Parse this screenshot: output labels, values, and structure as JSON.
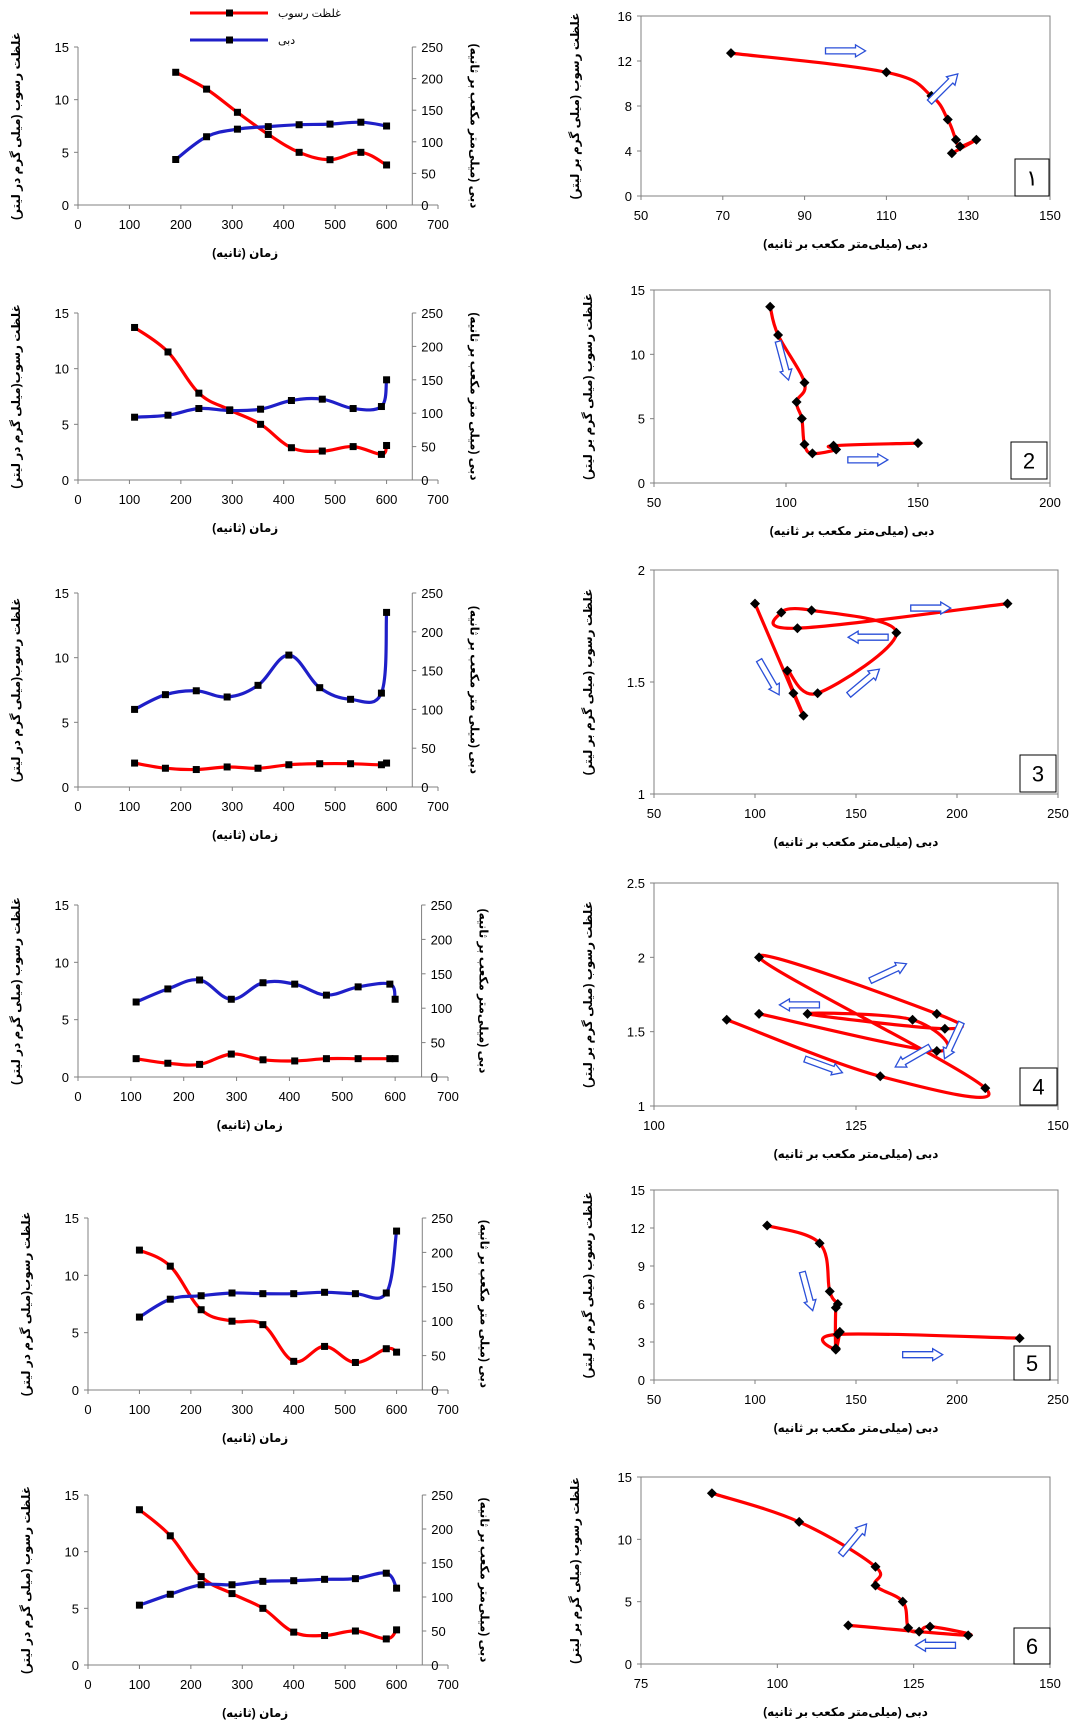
{
  "colors": {
    "sediment": "#ff0000",
    "discharge": "#1f1fc8",
    "marker_loop": "#000000",
    "arrow": "#2a4fd8",
    "axis": "#808080"
  },
  "chart_data": [
    {
      "id": "ts-1",
      "type": "line",
      "panel": "time-series",
      "legend": [
        "غلظت رسوب",
        "دبی"
      ],
      "xlabel": "زمان (ثانیه)",
      "ylabel": "غلظت رسوب (میلی گرم در لیتر)",
      "y2label": "دبی (میلی‌متر مکعب بر ثانیه)",
      "xlim": [
        0,
        700
      ],
      "xticks": [
        0,
        100,
        200,
        300,
        400,
        500,
        600,
        700
      ],
      "ylim": [
        0,
        15
      ],
      "yticks": [
        0,
        5,
        10,
        15
      ],
      "y2lim": [
        0,
        250
      ],
      "y2ticks": [
        0,
        50,
        100,
        150,
        200,
        250
      ],
      "series": [
        {
          "name": "غلظت رسوب",
          "axis": "left",
          "x": [
            190,
            250,
            310,
            370,
            430,
            490,
            550,
            600
          ],
          "y": [
            12.6,
            11.0,
            8.8,
            6.7,
            5.0,
            4.3,
            5.0,
            3.8
          ]
        },
        {
          "name": "دبی",
          "axis": "right",
          "x": [
            190,
            250,
            310,
            370,
            430,
            490,
            550,
            600
          ],
          "y": [
            72,
            108,
            120,
            124,
            127,
            128,
            131,
            125
          ]
        }
      ]
    },
    {
      "id": "hys-1",
      "type": "scatter",
      "panel": "hysteresis",
      "panel_label": "۱",
      "xlabel": "دبی (میلی‌متر مکعب بر ثانیه)",
      "ylabel": "غلظت رسوب (میلی گرم بر لیتر)",
      "xlim": [
        50,
        150
      ],
      "xticks": [
        50,
        70,
        90,
        110,
        130,
        150
      ],
      "ylim": [
        0,
        16
      ],
      "yticks": [
        0,
        4,
        8,
        12,
        16
      ],
      "points": {
        "x": [
          72,
          110,
          121,
          125,
          127,
          128,
          132,
          126
        ],
        "y": [
          12.7,
          11.0,
          8.9,
          6.8,
          5.0,
          4.4,
          5.0,
          3.8
        ]
      },
      "arrows": [
        {
          "x": 100,
          "y": 12.9,
          "dir": 0
        },
        {
          "x": 124,
          "y": 9.6,
          "dir": -45
        }
      ]
    },
    {
      "id": "ts-2",
      "type": "line",
      "panel": "time-series",
      "xlabel": "زمان (ثانیه)",
      "ylabel": "غلظت رسوب(میلی گرم در لیتر)",
      "y2label": "دبی (میلی متر مکعب بر ثانیه)",
      "xlim": [
        0,
        700
      ],
      "xticks": [
        0,
        100,
        200,
        300,
        400,
        500,
        600,
        700
      ],
      "ylim": [
        0,
        15
      ],
      "yticks": [
        0,
        5,
        10,
        15
      ],
      "y2lim": [
        0,
        250
      ],
      "y2ticks": [
        0,
        50,
        100,
        150,
        200,
        250
      ],
      "series": [
        {
          "name": "غلظت رسوب",
          "axis": "left",
          "x": [
            110,
            175,
            235,
            295,
            355,
            415,
            475,
            535,
            590,
            600
          ],
          "y": [
            13.7,
            11.5,
            7.8,
            6.3,
            5.0,
            2.9,
            2.6,
            3.0,
            2.3,
            3.1
          ]
        },
        {
          "name": "دبی",
          "axis": "right",
          "x": [
            110,
            175,
            235,
            295,
            355,
            415,
            475,
            535,
            590,
            600
          ],
          "y": [
            94,
            97,
            107,
            104,
            106,
            119,
            121,
            107,
            110,
            150
          ]
        }
      ]
    },
    {
      "id": "hys-2",
      "type": "scatter",
      "panel": "hysteresis",
      "panel_label": "2",
      "xlabel": "دبی (میلی‌متر مکعب بر ثانیه)",
      "ylabel": "غلظت رسوب (میلی گرم بر لیتر)",
      "xlim": [
        50,
        200
      ],
      "xticks": [
        50,
        100,
        150,
        200
      ],
      "ylim": [
        0,
        15
      ],
      "yticks": [
        0,
        5,
        10,
        15
      ],
      "points": {
        "x": [
          94,
          97,
          107,
          104,
          106,
          107,
          110,
          119,
          118,
          150
        ],
        "y": [
          13.7,
          11.5,
          7.8,
          6.3,
          5.0,
          3.0,
          2.3,
          2.6,
          2.9,
          3.1
        ]
      },
      "arrows": [
        {
          "x": 99,
          "y": 9.5,
          "dir": 75
        },
        {
          "x": 131,
          "y": 1.8,
          "dir": 0
        }
      ]
    },
    {
      "id": "ts-3",
      "type": "line",
      "panel": "time-series",
      "xlabel": "زمان (ثانیه)",
      "ylabel": "غلظت رسوب(میلی گرم در لیتر)",
      "y2label": "دبی (میلی متر مکعب بر ثانیه)",
      "xlim": [
        0,
        700
      ],
      "xticks": [
        0,
        100,
        200,
        300,
        400,
        500,
        600,
        700
      ],
      "ylim": [
        0,
        15
      ],
      "yticks": [
        0,
        5,
        10,
        15
      ],
      "y2lim": [
        0,
        250
      ],
      "y2ticks": [
        0,
        50,
        100,
        150,
        200,
        250
      ],
      "series": [
        {
          "name": "غلظت رسوب",
          "axis": "left",
          "x": [
            110,
            170,
            230,
            290,
            350,
            410,
            470,
            530,
            590,
            600
          ],
          "y": [
            1.85,
            1.45,
            1.35,
            1.55,
            1.45,
            1.72,
            1.8,
            1.8,
            1.72,
            1.85
          ]
        },
        {
          "name": "دبی",
          "axis": "right",
          "x": [
            110,
            170,
            230,
            290,
            350,
            410,
            470,
            530,
            590,
            600
          ],
          "y": [
            100,
            119,
            124,
            116,
            131,
            170,
            128,
            113,
            121,
            225
          ]
        }
      ]
    },
    {
      "id": "hys-3",
      "type": "scatter",
      "panel": "hysteresis",
      "panel_label": "3",
      "xlabel": "دبی (میلی‌متر مکعب بر ثانیه)",
      "ylabel": "غلظت رسوب (میلی گرم بر لیتر)",
      "xlim": [
        50,
        250
      ],
      "xticks": [
        50,
        100,
        150,
        200,
        250
      ],
      "ylim": [
        1,
        2
      ],
      "yticks": [
        1,
        1.5,
        2
      ],
      "points": {
        "x": [
          100,
          119,
          124,
          116,
          131,
          170,
          128,
          113,
          121,
          225
        ],
        "y": [
          1.85,
          1.45,
          1.35,
          1.55,
          1.45,
          1.72,
          1.82,
          1.81,
          1.74,
          1.85
        ]
      },
      "arrows": [
        {
          "x": 107,
          "y": 1.52,
          "dir": 60
        },
        {
          "x": 154,
          "y": 1.5,
          "dir": -40
        },
        {
          "x": 156,
          "y": 1.7,
          "dir": 180
        },
        {
          "x": 187,
          "y": 1.83,
          "dir": 0
        }
      ]
    },
    {
      "id": "ts-4",
      "type": "line",
      "panel": "time-series",
      "xlabel": "زمان (ثانیه)",
      "ylabel": "غلظت رسوب (میلی گرم در لیتر)",
      "y2label": "دبی (میلی‌متر مکعب بر ثانیه)",
      "xlim": [
        0,
        700
      ],
      "xticks": [
        0,
        100,
        200,
        300,
        400,
        500,
        600,
        700
      ],
      "ylim": [
        0,
        15
      ],
      "yticks": [
        0,
        5,
        10,
        15
      ],
      "y2lim": [
        0,
        250
      ],
      "y2ticks": [
        0,
        50,
        100,
        150,
        200,
        250
      ],
      "series": [
        {
          "name": "غلظت رسوب",
          "axis": "left",
          "x": [
            110,
            170,
            230,
            290,
            350,
            410,
            470,
            530,
            590,
            600
          ],
          "y": [
            1.6,
            1.2,
            1.1,
            2.0,
            1.5,
            1.4,
            1.6,
            1.6,
            1.6,
            1.6
          ]
        },
        {
          "name": "دبی",
          "axis": "right",
          "x": [
            110,
            170,
            230,
            290,
            350,
            410,
            470,
            530,
            590,
            600
          ],
          "y": [
            109,
            128,
            141,
            113,
            137,
            135,
            119,
            131,
            135,
            113
          ]
        }
      ]
    },
    {
      "id": "hys-4",
      "type": "scatter",
      "panel": "hysteresis",
      "panel_label": "4",
      "xlabel": "دبی (میلی‌متر مکعب بر ثانیه)",
      "ylabel": "غلظت رسوب (میلی گرم بر لیتر)",
      "xlim": [
        100,
        150
      ],
      "xticks": [
        100,
        125,
        150
      ],
      "ylim": [
        1,
        2.5
      ],
      "yticks": [
        1,
        1.5,
        2,
        2.5
      ],
      "points": {
        "x": [
          109,
          128,
          141,
          113,
          135,
          136,
          119,
          132,
          135,
          113
        ],
        "y": [
          1.58,
          1.2,
          1.12,
          2.0,
          1.62,
          1.52,
          1.62,
          1.58,
          1.37,
          1.62
        ]
      },
      "arrows": [
        {
          "x": 118,
          "y": 1.68,
          "dir": 180
        },
        {
          "x": 129,
          "y": 1.9,
          "dir": -25
        },
        {
          "x": 121,
          "y": 1.27,
          "dir": 20
        },
        {
          "x": 132,
          "y": 1.33,
          "dir": 150
        },
        {
          "x": 137,
          "y": 1.44,
          "dir": 115
        }
      ]
    },
    {
      "id": "ts-5",
      "type": "line",
      "panel": "time-series",
      "xlabel": "زمان (ثانیه)",
      "ylabel": "غلظت رسوب(میلی گرم در لیتر)",
      "y2label": "دبی (میلی متر مکعب بر ثانیه)",
      "xlim": [
        0,
        700
      ],
      "xticks": [
        0,
        100,
        200,
        300,
        400,
        500,
        600,
        700
      ],
      "ylim": [
        0,
        15
      ],
      "yticks": [
        0,
        5,
        10,
        15
      ],
      "y2lim": [
        0,
        250
      ],
      "y2ticks": [
        0,
        50,
        100,
        150,
        200,
        250
      ],
      "series": [
        {
          "name": "غلظت رسوب",
          "axis": "left",
          "x": [
            100,
            160,
            220,
            280,
            340,
            400,
            460,
            520,
            580,
            600
          ],
          "y": [
            12.2,
            10.8,
            7.0,
            6.0,
            5.7,
            2.5,
            3.8,
            2.4,
            3.6,
            3.3
          ]
        },
        {
          "name": "دبی",
          "axis": "right",
          "x": [
            100,
            160,
            220,
            280,
            340,
            400,
            460,
            520,
            580,
            600
          ],
          "y": [
            106,
            132,
            137,
            141,
            140,
            140,
            142,
            140,
            141,
            231
          ]
        }
      ]
    },
    {
      "id": "hys-5",
      "type": "scatter",
      "panel": "hysteresis",
      "panel_label": "5",
      "xlabel": "دبی (میلی‌متر مکعب بر ثانیه)",
      "ylabel": "غلظت رسوب (میلی گرم بر لیتر)",
      "xlim": [
        50,
        250
      ],
      "xticks": [
        50,
        100,
        150,
        200,
        250
      ],
      "ylim": [
        0,
        15
      ],
      "yticks": [
        0,
        3,
        6,
        9,
        12,
        15
      ],
      "points": {
        "x": [
          106,
          132,
          137,
          141,
          140,
          140,
          142,
          140,
          141,
          231
        ],
        "y": [
          12.2,
          10.8,
          7.0,
          6.0,
          5.7,
          2.5,
          3.8,
          2.4,
          3.6,
          3.3
        ]
      },
      "arrows": [
        {
          "x": 126,
          "y": 7.0,
          "dir": 75
        },
        {
          "x": 183,
          "y": 2.0,
          "dir": 0
        }
      ]
    },
    {
      "id": "ts-6",
      "type": "line",
      "panel": "time-series",
      "xlabel": "زمان (ثانیه)",
      "ylabel": "غلظت رسوب (میلی گرم در لیتر)",
      "y2label": "دبی (میلی‌متر مکعب بر ثانیه)",
      "xlim": [
        0,
        700
      ],
      "xticks": [
        0,
        100,
        200,
        300,
        400,
        500,
        600,
        700
      ],
      "ylim": [
        0,
        15
      ],
      "yticks": [
        0,
        5,
        10,
        15
      ],
      "y2lim": [
        0,
        250
      ],
      "y2ticks": [
        0,
        50,
        100,
        150,
        200,
        250
      ],
      "series": [
        {
          "name": "غلظت رسوب",
          "axis": "left",
          "x": [
            100,
            160,
            220,
            280,
            340,
            400,
            460,
            520,
            580,
            600
          ],
          "y": [
            13.7,
            11.4,
            7.8,
            6.3,
            5.0,
            2.9,
            2.6,
            3.0,
            2.3,
            3.1
          ]
        },
        {
          "name": "دبی",
          "axis": "right",
          "x": [
            100,
            160,
            220,
            280,
            340,
            400,
            460,
            520,
            580,
            600
          ],
          "y": [
            88,
            104,
            118,
            118,
            123,
            124,
            126,
            127,
            135,
            113
          ]
        }
      ]
    },
    {
      "id": "hys-6",
      "type": "scatter",
      "panel": "hysteresis",
      "panel_label": "6",
      "xlabel": "دبی (میلی‌متر مکعب بر ثانیه)",
      "ylabel": "غلظت رسوب (میلی گرم بر لیتر)",
      "xlim": [
        75,
        150
      ],
      "xticks": [
        75,
        100,
        125,
        150
      ],
      "ylim": [
        0,
        15
      ],
      "yticks": [
        0,
        5,
        10,
        15
      ],
      "points": {
        "x": [
          88,
          104,
          118,
          118,
          123,
          124,
          126,
          128,
          135,
          113
        ],
        "y": [
          13.7,
          11.4,
          7.8,
          6.3,
          5.0,
          2.9,
          2.6,
          3.0,
          2.3,
          3.1
        ]
      },
      "arrows": [
        {
          "x": 114,
          "y": 10.0,
          "dir": -50
        },
        {
          "x": 129,
          "y": 1.5,
          "dir": 180
        }
      ]
    }
  ]
}
